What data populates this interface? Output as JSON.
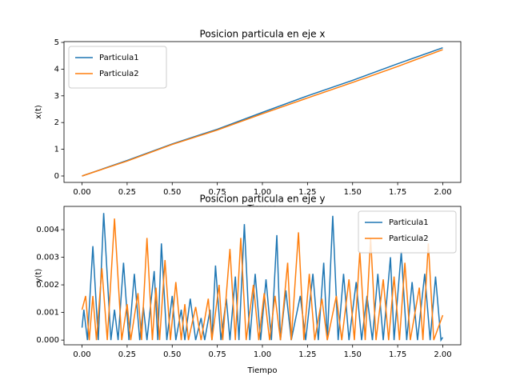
{
  "chart_data": [
    {
      "type": "line",
      "title": "Posicion particula en eje x",
      "xlabel": "Tiempo",
      "ylabel": "x(t)",
      "xlim": [
        -0.1,
        2.1
      ],
      "ylim": [
        -0.24,
        5.03
      ],
      "xticks": [
        {
          "value": 0,
          "label": "0.00"
        },
        {
          "value": 0.25,
          "label": "0.25"
        },
        {
          "value": 0.5,
          "label": "0.50"
        },
        {
          "value": 0.75,
          "label": "0.75"
        },
        {
          "value": 1,
          "label": "1.00"
        },
        {
          "value": 1.25,
          "label": "1.25"
        },
        {
          "value": 1.5,
          "label": "1.50"
        },
        {
          "value": 1.75,
          "label": "1.75"
        },
        {
          "value": 2,
          "label": "2.00"
        }
      ],
      "yticks": [
        0,
        1,
        2,
        3,
        4,
        5
      ],
      "legend": "upper left",
      "series": [
        {
          "name": "Particula1",
          "color": "#1f77b4",
          "x": [
            0,
            0.25,
            0.5,
            0.75,
            1,
            1.25,
            1.5,
            1.75,
            2
          ],
          "values": [
            0,
            0.58,
            1.2,
            1.75,
            2.38,
            3.0,
            3.58,
            4.2,
            4.8
          ]
        },
        {
          "name": "Particula2",
          "color": "#ff7f0e",
          "x": [
            0,
            0.25,
            0.5,
            0.75,
            1,
            1.25,
            1.5,
            1.75,
            2
          ],
          "values": [
            0,
            0.56,
            1.18,
            1.72,
            2.33,
            2.92,
            3.5,
            4.1,
            4.73
          ]
        }
      ]
    },
    {
      "type": "line",
      "title": "Posicion particula en eje y",
      "xlabel": "Tiempo",
      "ylabel": "y(t)",
      "xlim": [
        -0.1,
        2.1
      ],
      "ylim": [
        -0.00017,
        0.00484
      ],
      "xticks": [
        {
          "value": 0,
          "label": "0.00"
        },
        {
          "value": 0.25,
          "label": "0.25"
        },
        {
          "value": 0.5,
          "label": "0.50"
        },
        {
          "value": 0.75,
          "label": "0.75"
        },
        {
          "value": 1,
          "label": "1.00"
        },
        {
          "value": 1.25,
          "label": "1.25"
        },
        {
          "value": 1.5,
          "label": "1.50"
        },
        {
          "value": 1.75,
          "label": "1.75"
        },
        {
          "value": 2,
          "label": "2.00"
        }
      ],
      "yticks": [
        {
          "value": 0,
          "label": "0.000"
        },
        {
          "value": 0.001,
          "label": "0.001"
        },
        {
          "value": 0.002,
          "label": "0.002"
        },
        {
          "value": 0.003,
          "label": "0.003"
        },
        {
          "value": 0.004,
          "label": "0.004"
        }
      ],
      "legend": "upper right",
      "series": [
        {
          "name": "Particula1",
          "color": "#1f77b4",
          "x": [
            0,
            0.01,
            0.03,
            0.06,
            0.09,
            0.12,
            0.16,
            0.18,
            0.2,
            0.23,
            0.26,
            0.29,
            0.32,
            0.34,
            0.36,
            0.4,
            0.42,
            0.44,
            0.47,
            0.5,
            0.52,
            0.55,
            0.57,
            0.6,
            0.63,
            0.66,
            0.68,
            0.71,
            0.72,
            0.74,
            0.77,
            0.8,
            0.82,
            0.85,
            0.87,
            0.9,
            0.93,
            0.96,
            0.99,
            1.02,
            1.05,
            1.08,
            1.1,
            1.13,
            1.16,
            1.21,
            1.24,
            1.28,
            1.31,
            1.34,
            1.36,
            1.39,
            1.42,
            1.45,
            1.48,
            1.52,
            1.55,
            1.58,
            1.61,
            1.64,
            1.67,
            1.71,
            1.73,
            1.77,
            1.8,
            1.83,
            1.86,
            1.9,
            1.93,
            1.96,
            1.99,
            2.0
          ],
          "values": [
            0.00045,
            0.0011,
            0,
            0.0034,
            0,
            0.0046,
            0,
            0.0011,
            0,
            0.0028,
            0,
            0.0024,
            0,
            0.0012,
            0,
            0.0025,
            0,
            0.0035,
            0,
            0.0016,
            0,
            0.0011,
            0,
            0.0015,
            0,
            0.0008,
            0,
            0.0011,
            0,
            0.0027,
            0,
            0.0015,
            0,
            0.0023,
            0,
            0.0042,
            0,
            0.0024,
            0,
            0.0022,
            0,
            0.0038,
            0,
            0.0018,
            0,
            0.0016,
            0,
            0.0024,
            0,
            0.0028,
            0,
            0.0045,
            0,
            0.0024,
            0,
            0.0021,
            0,
            0.0016,
            0,
            0.0024,
            0,
            0.003,
            0,
            0.0032,
            0,
            0.0021,
            0,
            0.0024,
            0,
            0.0023,
            0,
            0.0001
          ]
        },
        {
          "name": "Particula2",
          "color": "#ff7f0e",
          "x": [
            0,
            0.02,
            0.04,
            0.06,
            0.08,
            0.11,
            0.14,
            0.18,
            0.22,
            0.25,
            0.27,
            0.31,
            0.33,
            0.36,
            0.39,
            0.41,
            0.43,
            0.46,
            0.49,
            0.52,
            0.55,
            0.57,
            0.59,
            0.63,
            0.66,
            0.7,
            0.72,
            0.76,
            0.78,
            0.82,
            0.85,
            0.88,
            0.91,
            0.95,
            0.98,
            1.01,
            1.04,
            1.07,
            1.1,
            1.14,
            1.16,
            1.2,
            1.23,
            1.26,
            1.29,
            1.33,
            1.36,
            1.41,
            1.44,
            1.48,
            1.51,
            1.54,
            1.57,
            1.6,
            1.63,
            1.67,
            1.7,
            1.73,
            1.76,
            1.79,
            1.82,
            1.87,
            1.89,
            1.92,
            1.95,
            2.0
          ],
          "values": [
            0.0011,
            0.0016,
            0,
            0.0016,
            0,
            0.0026,
            0,
            0.0044,
            0,
            0.0013,
            0,
            0.0017,
            0,
            0.0037,
            0,
            0.0019,
            0,
            0.0029,
            0,
            0.0021,
            0,
            0.0013,
            0,
            0.0012,
            0,
            0.0015,
            0,
            0.002,
            0,
            0.0033,
            0,
            0.0037,
            0,
            0.002,
            0,
            0.0017,
            0,
            0.0016,
            0,
            0.0028,
            0,
            0.0039,
            0,
            0.0024,
            0,
            0.0015,
            0,
            0.0016,
            0,
            0.0022,
            0,
            0.0032,
            0,
            0.0037,
            0,
            0.0022,
            0,
            0.0023,
            0,
            0.0028,
            0,
            0.0019,
            0,
            0.0035,
            0,
            0.0009
          ]
        }
      ]
    }
  ]
}
